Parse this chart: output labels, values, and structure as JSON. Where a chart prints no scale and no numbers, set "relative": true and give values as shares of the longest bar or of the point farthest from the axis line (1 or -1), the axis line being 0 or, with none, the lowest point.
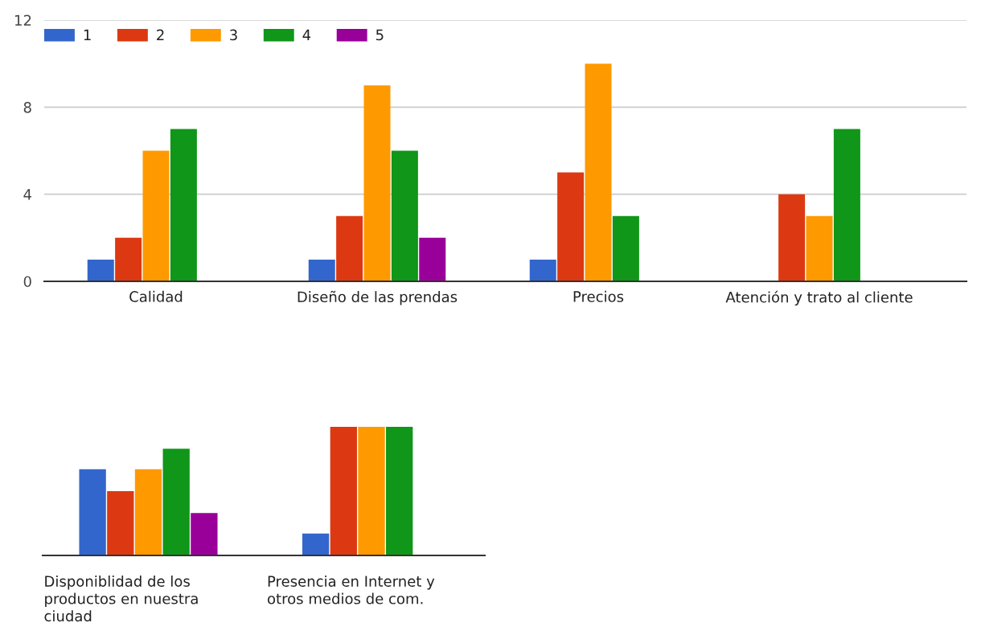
{
  "chart_data": [
    {
      "type": "bar",
      "categories": [
        "Calidad",
        "Diseño de las prendas",
        "Precios",
        "Atención y trato al cliente"
      ],
      "series": [
        {
          "name": "1",
          "color": "#3366cc",
          "values": [
            1,
            1,
            1,
            null
          ]
        },
        {
          "name": "2",
          "color": "#dc3912",
          "values": [
            2,
            3,
            5,
            4
          ]
        },
        {
          "name": "3",
          "color": "#ff9900",
          "values": [
            6,
            9,
            10,
            3
          ]
        },
        {
          "name": "4",
          "color": "#109618",
          "values": [
            7,
            6,
            3,
            7
          ]
        },
        {
          "name": "5",
          "color": "#990099",
          "values": [
            null,
            2,
            null,
            null
          ]
        }
      ],
      "ylim": [
        0,
        12
      ],
      "yticks": [
        0,
        4,
        8,
        12
      ],
      "grid": "y",
      "legend": "top left"
    },
    {
      "type": "bar",
      "relative": true,
      "categories": [
        "Disponiblidad de los\nproductos en nuestra\nciudad",
        "Presencia en Internet y\notros medios de com."
      ],
      "series": [
        {
          "color": "#3366cc",
          "values": [
            0.67,
            0.17
          ]
        },
        {
          "color": "#dc3912",
          "values": [
            0.5,
            1
          ]
        },
        {
          "color": "#ff9900",
          "values": [
            0.67,
            1
          ]
        },
        {
          "color": "#109618",
          "values": [
            0.83,
            1
          ]
        },
        {
          "color": "#990099",
          "values": [
            0.33,
            null
          ]
        }
      ]
    }
  ]
}
